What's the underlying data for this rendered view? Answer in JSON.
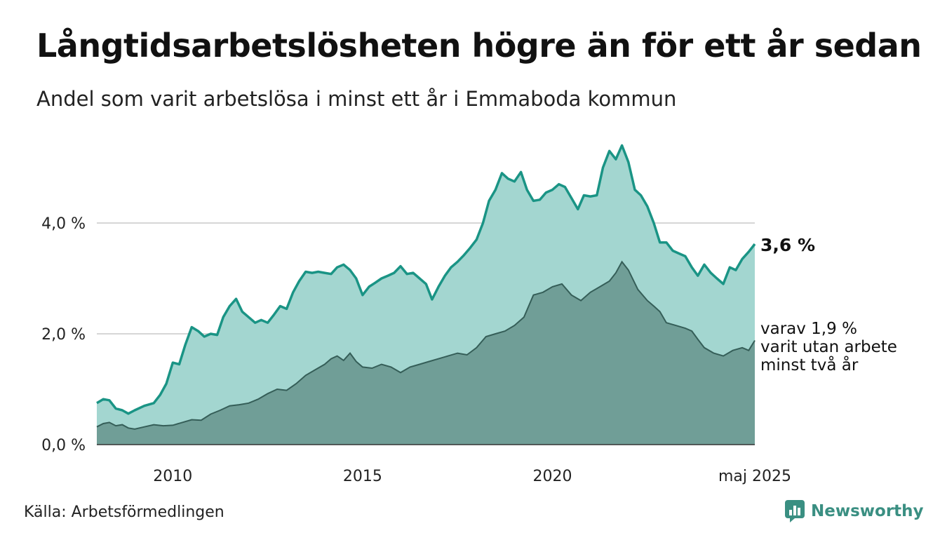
{
  "header": {
    "title": "Långtidsarbetslösheten högre än för ett år sedan",
    "subtitle": "Andel som varit arbetslösa i minst ett år i Emmaboda kommun"
  },
  "footer": {
    "source": "Källa: Arbetsförmedlingen",
    "brand": "Newsworthy"
  },
  "colors": {
    "top_line": "#1a9485",
    "top_fill": "#a3d6d0",
    "bottom_fill": "#709e97",
    "bottom_line": "#355e58",
    "grid": "#d6d6d6",
    "brand": "#3a8f82"
  },
  "chart_data": {
    "type": "area",
    "x_start": "2008-01",
    "x_end": "2025-05",
    "x_ticks": [
      {
        "value": 2010,
        "label": "2010"
      },
      {
        "value": 2015,
        "label": "2015"
      },
      {
        "value": 2020,
        "label": "2020"
      },
      {
        "value": 2025.33,
        "label": "maj 2025"
      }
    ],
    "y_ticks": [
      {
        "value": 0,
        "label": "0,0 %"
      },
      {
        "value": 2,
        "label": "2,0 %"
      },
      {
        "value": 4,
        "label": "4,0 %"
      }
    ],
    "ylim": [
      0,
      5.6
    ],
    "grid": "horizontal",
    "series": [
      {
        "key": "minst_ett_ar",
        "end_label": "3,6 %",
        "points": [
          [
            2008.0,
            0.75
          ],
          [
            2008.17,
            0.82
          ],
          [
            2008.33,
            0.8
          ],
          [
            2008.5,
            0.65
          ],
          [
            2008.67,
            0.62
          ],
          [
            2008.83,
            0.56
          ],
          [
            2009.0,
            0.62
          ],
          [
            2009.25,
            0.7
          ],
          [
            2009.5,
            0.75
          ],
          [
            2009.67,
            0.9
          ],
          [
            2009.83,
            1.1
          ],
          [
            2010.0,
            1.48
          ],
          [
            2010.17,
            1.45
          ],
          [
            2010.33,
            1.8
          ],
          [
            2010.5,
            2.12
          ],
          [
            2010.67,
            2.05
          ],
          [
            2010.83,
            1.95
          ],
          [
            2011.0,
            2.0
          ],
          [
            2011.17,
            1.98
          ],
          [
            2011.33,
            2.3
          ],
          [
            2011.5,
            2.5
          ],
          [
            2011.67,
            2.63
          ],
          [
            2011.83,
            2.4
          ],
          [
            2012.0,
            2.3
          ],
          [
            2012.17,
            2.2
          ],
          [
            2012.33,
            2.25
          ],
          [
            2012.5,
            2.2
          ],
          [
            2012.67,
            2.35
          ],
          [
            2012.83,
            2.5
          ],
          [
            2013.0,
            2.45
          ],
          [
            2013.17,
            2.75
          ],
          [
            2013.33,
            2.95
          ],
          [
            2013.5,
            3.12
          ],
          [
            2013.67,
            3.1
          ],
          [
            2013.83,
            3.12
          ],
          [
            2014.0,
            3.1
          ],
          [
            2014.17,
            3.08
          ],
          [
            2014.33,
            3.2
          ],
          [
            2014.5,
            3.25
          ],
          [
            2014.67,
            3.15
          ],
          [
            2014.83,
            3.0
          ],
          [
            2015.0,
            2.7
          ],
          [
            2015.17,
            2.85
          ],
          [
            2015.33,
            2.92
          ],
          [
            2015.5,
            3.0
          ],
          [
            2015.67,
            3.05
          ],
          [
            2015.83,
            3.1
          ],
          [
            2016.0,
            3.22
          ],
          [
            2016.17,
            3.08
          ],
          [
            2016.33,
            3.1
          ],
          [
            2016.5,
            3.0
          ],
          [
            2016.67,
            2.9
          ],
          [
            2016.83,
            2.62
          ],
          [
            2017.0,
            2.85
          ],
          [
            2017.17,
            3.05
          ],
          [
            2017.33,
            3.2
          ],
          [
            2017.5,
            3.3
          ],
          [
            2017.67,
            3.42
          ],
          [
            2017.83,
            3.55
          ],
          [
            2018.0,
            3.7
          ],
          [
            2018.17,
            4.0
          ],
          [
            2018.33,
            4.4
          ],
          [
            2018.5,
            4.6
          ],
          [
            2018.67,
            4.9
          ],
          [
            2018.83,
            4.8
          ],
          [
            2019.0,
            4.75
          ],
          [
            2019.17,
            4.92
          ],
          [
            2019.33,
            4.6
          ],
          [
            2019.5,
            4.4
          ],
          [
            2019.67,
            4.42
          ],
          [
            2019.83,
            4.55
          ],
          [
            2020.0,
            4.6
          ],
          [
            2020.17,
            4.7
          ],
          [
            2020.33,
            4.65
          ],
          [
            2020.5,
            4.45
          ],
          [
            2020.67,
            4.25
          ],
          [
            2020.83,
            4.5
          ],
          [
            2021.0,
            4.48
          ],
          [
            2021.17,
            4.5
          ],
          [
            2021.33,
            5.0
          ],
          [
            2021.5,
            5.3
          ],
          [
            2021.67,
            5.15
          ],
          [
            2021.83,
            5.4
          ],
          [
            2022.0,
            5.1
          ],
          [
            2022.17,
            4.6
          ],
          [
            2022.33,
            4.5
          ],
          [
            2022.5,
            4.3
          ],
          [
            2022.67,
            4.0
          ],
          [
            2022.83,
            3.65
          ],
          [
            2023.0,
            3.65
          ],
          [
            2023.17,
            3.5
          ],
          [
            2023.33,
            3.45
          ],
          [
            2023.5,
            3.4
          ],
          [
            2023.67,
            3.2
          ],
          [
            2023.83,
            3.05
          ],
          [
            2024.0,
            3.25
          ],
          [
            2024.17,
            3.1
          ],
          [
            2024.33,
            3.0
          ],
          [
            2024.5,
            2.9
          ],
          [
            2024.67,
            3.2
          ],
          [
            2024.83,
            3.15
          ],
          [
            2025.0,
            3.35
          ],
          [
            2025.17,
            3.48
          ],
          [
            2025.33,
            3.62
          ]
        ]
      },
      {
        "key": "minst_tva_ar",
        "end_label": "varav 1,9 %",
        "end_label_lines": [
          "varit utan arbete",
          "minst två år"
        ],
        "points": [
          [
            2008.0,
            0.32
          ],
          [
            2008.17,
            0.38
          ],
          [
            2008.33,
            0.4
          ],
          [
            2008.5,
            0.34
          ],
          [
            2008.67,
            0.36
          ],
          [
            2008.83,
            0.3
          ],
          [
            2009.0,
            0.28
          ],
          [
            2009.25,
            0.32
          ],
          [
            2009.5,
            0.36
          ],
          [
            2009.75,
            0.34
          ],
          [
            2010.0,
            0.35
          ],
          [
            2010.25,
            0.4
          ],
          [
            2010.5,
            0.45
          ],
          [
            2010.75,
            0.44
          ],
          [
            2011.0,
            0.55
          ],
          [
            2011.25,
            0.62
          ],
          [
            2011.5,
            0.7
          ],
          [
            2011.75,
            0.72
          ],
          [
            2012.0,
            0.75
          ],
          [
            2012.25,
            0.82
          ],
          [
            2012.5,
            0.92
          ],
          [
            2012.75,
            1.0
          ],
          [
            2013.0,
            0.98
          ],
          [
            2013.25,
            1.1
          ],
          [
            2013.5,
            1.25
          ],
          [
            2013.75,
            1.35
          ],
          [
            2014.0,
            1.45
          ],
          [
            2014.17,
            1.55
          ],
          [
            2014.33,
            1.6
          ],
          [
            2014.5,
            1.52
          ],
          [
            2014.67,
            1.65
          ],
          [
            2014.83,
            1.5
          ],
          [
            2015.0,
            1.4
          ],
          [
            2015.25,
            1.38
          ],
          [
            2015.5,
            1.45
          ],
          [
            2015.75,
            1.4
          ],
          [
            2016.0,
            1.3
          ],
          [
            2016.25,
            1.4
          ],
          [
            2016.5,
            1.45
          ],
          [
            2016.75,
            1.5
          ],
          [
            2017.0,
            1.55
          ],
          [
            2017.25,
            1.6
          ],
          [
            2017.5,
            1.65
          ],
          [
            2017.75,
            1.62
          ],
          [
            2018.0,
            1.75
          ],
          [
            2018.25,
            1.95
          ],
          [
            2018.5,
            2.0
          ],
          [
            2018.75,
            2.05
          ],
          [
            2019.0,
            2.15
          ],
          [
            2019.25,
            2.3
          ],
          [
            2019.5,
            2.7
          ],
          [
            2019.75,
            2.75
          ],
          [
            2020.0,
            2.85
          ],
          [
            2020.25,
            2.9
          ],
          [
            2020.5,
            2.7
          ],
          [
            2020.75,
            2.6
          ],
          [
            2021.0,
            2.75
          ],
          [
            2021.25,
            2.85
          ],
          [
            2021.5,
            2.95
          ],
          [
            2021.67,
            3.1
          ],
          [
            2021.83,
            3.3
          ],
          [
            2022.0,
            3.15
          ],
          [
            2022.25,
            2.8
          ],
          [
            2022.5,
            2.6
          ],
          [
            2022.67,
            2.5
          ],
          [
            2022.83,
            2.4
          ],
          [
            2023.0,
            2.2
          ],
          [
            2023.25,
            2.15
          ],
          [
            2023.5,
            2.1
          ],
          [
            2023.67,
            2.05
          ],
          [
            2023.83,
            1.9
          ],
          [
            2024.0,
            1.75
          ],
          [
            2024.25,
            1.65
          ],
          [
            2024.5,
            1.6
          ],
          [
            2024.75,
            1.7
          ],
          [
            2025.0,
            1.75
          ],
          [
            2025.17,
            1.7
          ],
          [
            2025.33,
            1.88
          ]
        ]
      }
    ]
  }
}
